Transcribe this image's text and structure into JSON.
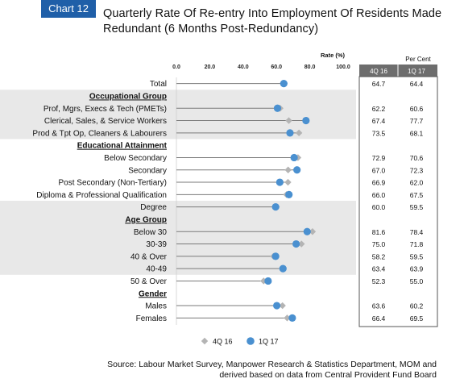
{
  "badge": "Chart 12",
  "title": {
    "line1": "Quarterly Rate Of Re-entry Into Employment Of Residents Made",
    "line2": "Redundant (6 Months Post-Redundancy)"
  },
  "source": {
    "line1": "Source: Labour Market Survey, Manpower Research & Statistics Department, MOM and",
    "line2": "derived based on data from Central Provident Fund Board"
  },
  "colors": {
    "series_4q16": "#b4b4b4",
    "series_1q17": "#4a90d0",
    "header_bg": "#6d6d6d",
    "band": "#e8e8e8",
    "lollipop": "#7a7a7a"
  },
  "chart_data": {
    "type": "dot",
    "title": "Quarterly Rate Of Re-entry Into Employment Of Residents Made Redundant (6 Months Post-Redundancy)",
    "xlabel": "Rate (%)",
    "xlim": [
      0,
      100
    ],
    "x_ticks": [
      "0.0",
      "20.0",
      "40.0",
      "60.0",
      "80.0",
      "100.0"
    ],
    "table_header": "Per Cent",
    "series": [
      {
        "name": "4Q 16",
        "marker": "diamond"
      },
      {
        "name": "1Q 17",
        "marker": "circle"
      }
    ],
    "rows": [
      {
        "label": "Total",
        "kind": "item",
        "v4q16": 64.7,
        "v1q17": 64.4,
        "t4q16": "64.7",
        "t1q17": "64.4"
      },
      {
        "label": "Occupational Group",
        "kind": "header"
      },
      {
        "label": "Prof, Mgrs, Execs & Tech (PMETs)",
        "kind": "item",
        "v4q16": 62.2,
        "v1q17": 60.6,
        "t4q16": "62.2",
        "t1q17": "60.6"
      },
      {
        "label": "Clerical, Sales, & Service Workers",
        "kind": "item",
        "v4q16": 67.4,
        "v1q17": 77.7,
        "t4q16": "67.4",
        "t1q17": "77.7"
      },
      {
        "label": "Prod & Tpt Op, Cleaners & Labourers",
        "kind": "item",
        "v4q16": 73.5,
        "v1q17": 68.1,
        "t4q16": "73.5",
        "t1q17": "68.1"
      },
      {
        "label": "Educational Attainment",
        "kind": "header"
      },
      {
        "label": "Below Secondary",
        "kind": "item",
        "v4q16": 72.9,
        "v1q17": 70.6,
        "t4q16": "72.9",
        "t1q17": "70.6"
      },
      {
        "label": "Secondary",
        "kind": "item",
        "v4q16": 67.0,
        "v1q17": 72.3,
        "t4q16": "67.0",
        "t1q17": "72.3"
      },
      {
        "label": "Post Secondary (Non-Tertiary)",
        "kind": "item",
        "v4q16": 66.9,
        "v1q17": 62.0,
        "t4q16": "66.9",
        "t1q17": "62.0"
      },
      {
        "label": "Diploma & Professional Qualification",
        "kind": "item",
        "v4q16": 66.0,
        "v1q17": 67.5,
        "t4q16": "66.0",
        "t1q17": "67.5"
      },
      {
        "label": "Degree",
        "kind": "item",
        "v4q16": 60.0,
        "v1q17": 59.5,
        "t4q16": "60.0",
        "t1q17": "59.5"
      },
      {
        "label": "Age Group",
        "kind": "header"
      },
      {
        "label": "Below 30",
        "kind": "item",
        "v4q16": 81.6,
        "v1q17": 78.4,
        "t4q16": "81.6",
        "t1q17": "78.4"
      },
      {
        "label": "30-39",
        "kind": "item",
        "v4q16": 75.0,
        "v1q17": 71.8,
        "t4q16": "75.0",
        "t1q17": "71.8"
      },
      {
        "label": "40 & Over",
        "kind": "item",
        "v4q16": 58.2,
        "v1q17": 59.5,
        "t4q16": "58.2",
        "t1q17": "59.5"
      },
      {
        "label": "40-49",
        "kind": "item",
        "v4q16": 63.4,
        "v1q17": 63.9,
        "t4q16": "63.4",
        "t1q17": "63.9"
      },
      {
        "label": "50 & Over",
        "kind": "item",
        "v4q16": 52.3,
        "v1q17": 55.0,
        "t4q16": "52.3",
        "t1q17": "55.0"
      },
      {
        "label": "Gender",
        "kind": "header"
      },
      {
        "label": "Males",
        "kind": "item",
        "v4q16": 63.6,
        "v1q17": 60.2,
        "t4q16": "63.6",
        "t1q17": "60.2"
      },
      {
        "label": "Females",
        "kind": "item",
        "v4q16": 66.4,
        "v1q17": 69.5,
        "t4q16": "66.4",
        "t1q17": "69.5"
      }
    ]
  }
}
